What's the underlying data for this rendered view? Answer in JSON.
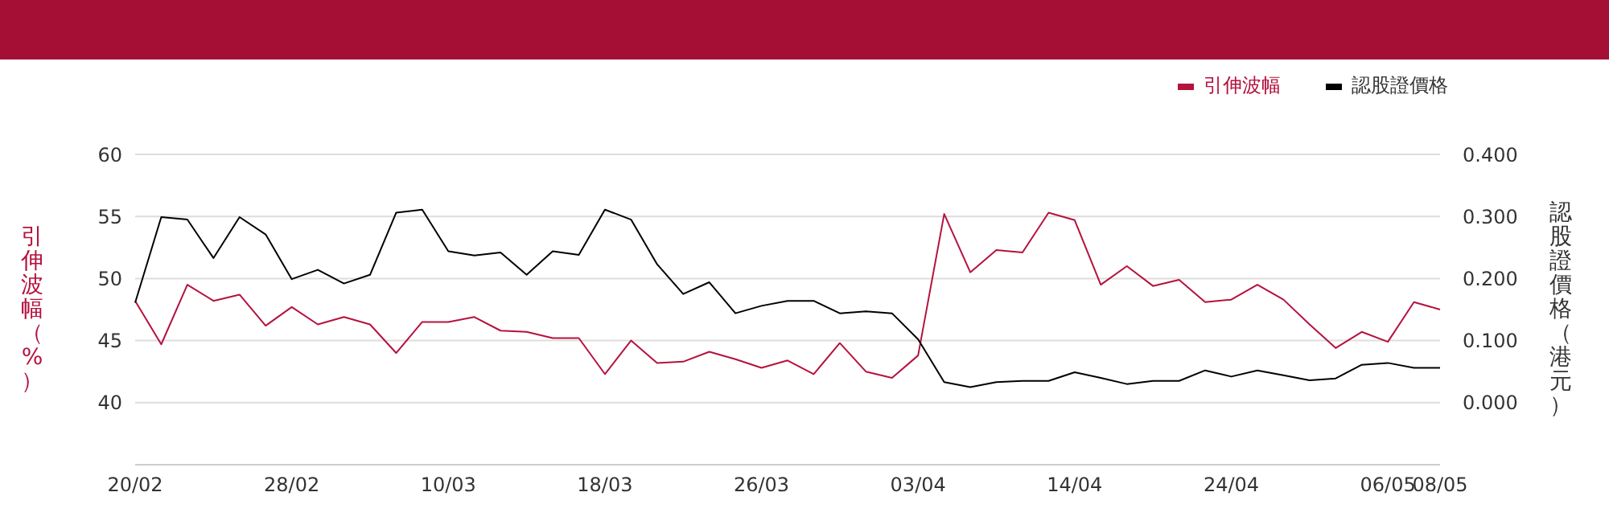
{
  "chart_data": {
    "type": "line",
    "categories": [
      "20/02",
      null,
      null,
      null,
      null,
      null,
      "28/02",
      null,
      null,
      null,
      null,
      null,
      "10/03",
      null,
      null,
      null,
      null,
      null,
      "18/03",
      null,
      null,
      null,
      null,
      null,
      "26/03",
      null,
      null,
      null,
      null,
      null,
      "03/04",
      null,
      null,
      null,
      null,
      null,
      "14/04",
      null,
      null,
      null,
      null,
      null,
      "24/04",
      null,
      null,
      null,
      null,
      null,
      "06/05",
      null,
      "08/05"
    ],
    "series": [
      {
        "name": "引伸波幅",
        "color": "#b5123e",
        "values": [
          48.2,
          44.7,
          49.5,
          48.2,
          48.7,
          46.2,
          47.7,
          46.3,
          46.9,
          46.3,
          44.0,
          46.5,
          46.5,
          46.9,
          45.8,
          45.7,
          45.2,
          45.2,
          42.3,
          45.0,
          43.2,
          43.3,
          44.1,
          43.5,
          42.8,
          43.4,
          42.3,
          44.8,
          42.5,
          42.0,
          43.8,
          55.2,
          50.5,
          52.3,
          52.1,
          55.3,
          54.7,
          49.5,
          51.0,
          49.4,
          49.9,
          48.1,
          48.3,
          49.5,
          48.3,
          46.3,
          44.4,
          45.7,
          44.9,
          48.1,
          47.5
        ]
      },
      {
        "name": "認股證價格",
        "color": "#000000",
        "axis": "y2",
        "values": [
          0.161,
          0.299,
          0.295,
          0.233,
          0.299,
          0.271,
          0.199,
          0.214,
          0.192,
          0.206,
          0.306,
          0.311,
          0.244,
          0.237,
          0.242,
          0.206,
          0.244,
          0.238,
          0.311,
          0.295,
          0.223,
          0.175,
          0.194,
          0.144,
          0.156,
          0.164,
          0.164,
          0.144,
          0.147,
          0.144,
          0.102,
          0.033,
          0.025,
          0.033,
          0.035,
          0.035,
          0.049,
          0.04,
          0.03,
          0.035,
          0.035,
          0.052,
          0.042,
          0.052,
          0.044,
          0.036,
          0.039,
          0.061,
          0.064,
          0.056,
          0.056
        ]
      }
    ],
    "ylabel": "引伸波幅（%）",
    "y2label": "認股證價格（港元）",
    "ylim": [
      35,
      60
    ],
    "yticks": [
      40,
      45,
      50,
      55,
      60
    ],
    "y2lim": [
      -0.1,
      0.4
    ],
    "y2ticks": [
      {
        "value": 0,
        "label": "0.000"
      },
      {
        "value": 0.1,
        "label": "0.100"
      },
      {
        "value": 0.2,
        "label": "0.200"
      },
      {
        "value": 0.3,
        "label": "0.300"
      },
      {
        "value": 0.4,
        "label": "0.400"
      }
    ],
    "grid": "y",
    "legend": "top right",
    "marker": "none",
    "line_style": "solid"
  }
}
